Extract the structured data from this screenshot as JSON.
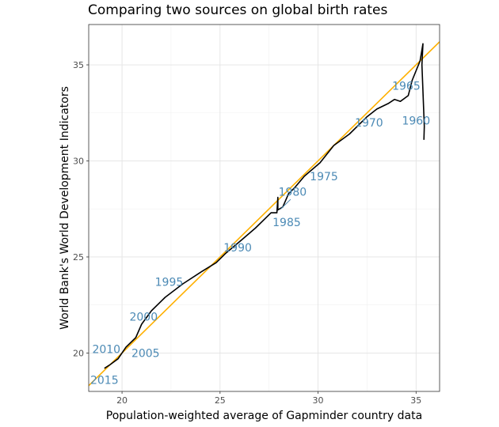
{
  "chart_data": {
    "type": "line",
    "title": "Comparing two sources on global birth rates",
    "xlabel": "Population-weighted average of Gapminder country data",
    "ylabel": "World Bank's World Development Indicators",
    "xlim": [
      18.3,
      36.2
    ],
    "ylim": [
      18.0,
      37.1
    ],
    "x_ticks": [
      20,
      25,
      30,
      35
    ],
    "y_ticks": [
      20,
      25,
      30,
      35
    ],
    "grid": true,
    "reference_line": {
      "slope": 1,
      "intercept": 0,
      "color": "#ffb000"
    },
    "series": [
      {
        "color": "#000000",
        "points": [
          [
            35.4,
            31.1
          ],
          [
            35.42,
            31.8
          ],
          [
            35.3,
            35.0
          ],
          [
            35.35,
            36.1
          ],
          [
            35.2,
            35.2
          ],
          [
            34.8,
            34.2
          ],
          [
            34.6,
            33.4
          ],
          [
            34.2,
            33.1
          ],
          [
            33.9,
            33.2
          ],
          [
            33.6,
            33.0
          ],
          [
            33.0,
            32.7
          ],
          [
            32.5,
            32.3
          ],
          [
            31.6,
            31.4
          ],
          [
            30.8,
            30.8
          ],
          [
            30.1,
            29.9
          ],
          [
            29.3,
            29.2
          ],
          [
            28.8,
            28.6
          ],
          [
            28.5,
            28.3
          ],
          [
            28.2,
            27.6
          ],
          [
            27.95,
            27.45
          ],
          [
            27.95,
            28.1
          ],
          [
            27.9,
            27.3
          ],
          [
            27.6,
            27.3
          ],
          [
            27.2,
            26.9
          ],
          [
            26.8,
            26.5
          ],
          [
            26.0,
            25.8
          ],
          [
            25.3,
            25.2
          ],
          [
            24.8,
            24.7
          ],
          [
            24.0,
            24.2
          ],
          [
            23.1,
            23.6
          ],
          [
            22.2,
            22.9
          ],
          [
            21.5,
            22.2
          ],
          [
            21.0,
            21.5
          ],
          [
            20.7,
            20.8
          ],
          [
            20.2,
            20.3
          ],
          [
            19.8,
            19.7
          ],
          [
            19.4,
            19.4
          ],
          [
            19.1,
            19.2
          ]
        ]
      }
    ],
    "labels": [
      {
        "text": "1960",
        "x": 35.0,
        "y": 32.1
      },
      {
        "text": "1965",
        "x": 34.5,
        "y": 33.9
      },
      {
        "text": "1970",
        "x": 32.6,
        "y": 32.0
      },
      {
        "text": "1975",
        "x": 30.3,
        "y": 29.2
      },
      {
        "text": "1980",
        "x": 28.7,
        "y": 28.4
      },
      {
        "text": "1985",
        "x": 28.4,
        "y": 26.8
      },
      {
        "text": "1990",
        "x": 25.9,
        "y": 25.5
      },
      {
        "text": "1995",
        "x": 22.4,
        "y": 23.7
      },
      {
        "text": "2000",
        "x": 21.1,
        "y": 21.9
      },
      {
        "text": "2005",
        "x": 21.2,
        "y": 20.0
      },
      {
        "text": "2010",
        "x": 19.2,
        "y": 20.2
      },
      {
        "text": "2015",
        "x": 19.1,
        "y": 18.6
      }
    ],
    "label_color": "#4c8ab5",
    "label_connectors": [
      {
        "from": [
          28.6,
          28.0
        ],
        "to": [
          28.1,
          27.5
        ]
      }
    ]
  }
}
